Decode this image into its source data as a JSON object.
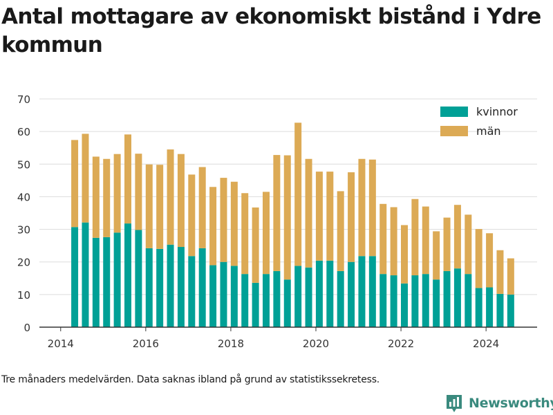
{
  "title": "Antal mottagare av ekonomiskt bistånd i Ydre kommun",
  "footnote": "Tre månaders medelvärden. Data saknas ibland på grund av statistikssekretess.",
  "brand": {
    "name": "Newsworthy",
    "color": "#3a8a7e",
    "icon": "bar-chart-logo-icon"
  },
  "colors": {
    "kvinnor": "#00a096",
    "man": "#dcaa55",
    "grid": "#dcdcdc",
    "axis": "#333333"
  },
  "chart_data": {
    "type": "bar",
    "stacked": true,
    "grid": true,
    "legend_position": "top-right",
    "ylim": [
      0,
      70
    ],
    "yticks": [
      0,
      10,
      20,
      30,
      40,
      50,
      60,
      70
    ],
    "xlim": [
      2013.5,
      2025.2
    ],
    "xticks": [
      2014,
      2016,
      2018,
      2020,
      2022,
      2024
    ],
    "x": [
      2014.33,
      2014.58,
      2014.83,
      2015.08,
      2015.33,
      2015.58,
      2015.83,
      2016.08,
      2016.33,
      2016.58,
      2016.83,
      2017.08,
      2017.33,
      2017.58,
      2017.83,
      2018.08,
      2018.33,
      2018.58,
      2018.83,
      2019.08,
      2019.33,
      2019.58,
      2019.83,
      2020.08,
      2020.33,
      2020.58,
      2020.83,
      2021.08,
      2021.33,
      2021.58,
      2021.83,
      2022.08,
      2022.33,
      2022.58,
      2022.83,
      2023.08,
      2023.33,
      2023.58,
      2023.83,
      2024.08,
      2024.33,
      2024.58
    ],
    "series": [
      {
        "name": "kvinnor",
        "values": [
          30.7,
          32.1,
          27.4,
          27.6,
          29.0,
          31.8,
          29.8,
          24.2,
          24.0,
          25.3,
          24.6,
          21.8,
          24.2,
          19.0,
          20.0,
          18.8,
          16.3,
          13.6,
          16.3,
          17.2,
          14.6,
          18.8,
          18.3,
          20.4,
          20.4,
          17.2,
          20.0,
          21.8,
          21.8,
          16.3,
          15.9,
          13.4,
          15.9,
          16.3,
          14.6,
          17.2,
          18.0,
          16.3,
          12.0,
          12.2,
          10.2,
          10.0
        ]
      },
      {
        "name": "män",
        "values": [
          26.7,
          27.2,
          24.9,
          24.0,
          24.1,
          27.3,
          23.4,
          25.7,
          25.8,
          29.2,
          28.5,
          25.0,
          24.9,
          24.0,
          25.8,
          25.8,
          24.8,
          23.1,
          25.2,
          35.6,
          38.1,
          43.9,
          33.3,
          27.3,
          27.3,
          24.5,
          27.5,
          29.8,
          29.6,
          21.5,
          20.9,
          17.9,
          23.4,
          20.7,
          14.8,
          16.4,
          19.5,
          18.2,
          18.1,
          16.6,
          13.4,
          11.1
        ]
      }
    ]
  }
}
